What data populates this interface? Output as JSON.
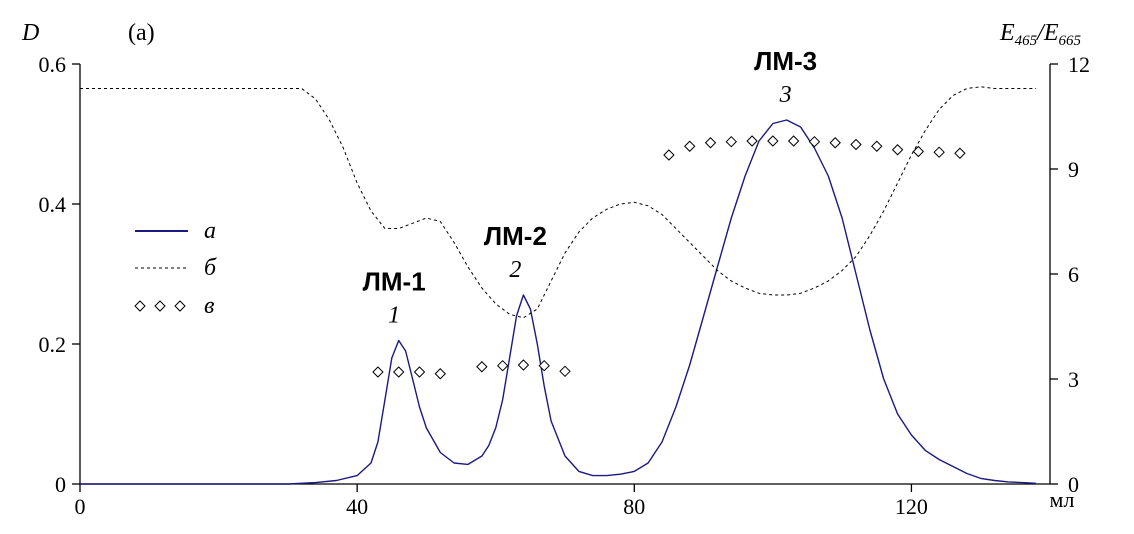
{
  "chart_data": {
    "type": "line",
    "panel_label": "(a)",
    "xlabel": "",
    "x_unit_label": "мл",
    "ylabel": "D",
    "y2label_text": "E465/E665",
    "xlim": [
      0,
      140
    ],
    "ylim": [
      0,
      0.6
    ],
    "y2lim": [
      0,
      12
    ],
    "x_ticks": [
      "0",
      "40",
      "80",
      "120"
    ],
    "y_ticks": [
      "0",
      "0.2",
      "0.4",
      "0.6"
    ],
    "y2_ticks": [
      "0",
      "3",
      "6",
      "9",
      "12"
    ],
    "grid": false,
    "legend_position": "left-middle",
    "series": [
      {
        "name": "а",
        "axis": "left",
        "style": "solid",
        "color": "#1a1a80",
        "x": [
          0,
          30,
          34,
          37,
          40,
          42,
          43,
          44,
          45,
          46,
          47,
          48,
          49,
          50,
          52,
          54,
          56,
          58,
          59,
          60,
          61,
          62,
          63,
          64,
          65,
          66,
          67,
          68,
          70,
          72,
          74,
          76,
          78,
          80,
          82,
          84,
          86,
          88,
          90,
          92,
          94,
          96,
          98,
          100,
          102,
          104,
          106,
          108,
          110,
          112,
          114,
          116,
          118,
          120,
          122,
          124,
          126,
          128,
          130,
          132,
          134,
          136,
          138
        ],
        "y": [
          0,
          0,
          0.002,
          0.005,
          0.012,
          0.03,
          0.06,
          0.12,
          0.18,
          0.205,
          0.19,
          0.15,
          0.11,
          0.08,
          0.045,
          0.03,
          0.028,
          0.04,
          0.055,
          0.08,
          0.12,
          0.18,
          0.24,
          0.27,
          0.25,
          0.2,
          0.14,
          0.09,
          0.04,
          0.018,
          0.012,
          0.012,
          0.014,
          0.018,
          0.03,
          0.06,
          0.11,
          0.17,
          0.24,
          0.31,
          0.38,
          0.44,
          0.49,
          0.515,
          0.52,
          0.51,
          0.48,
          0.44,
          0.38,
          0.3,
          0.22,
          0.15,
          0.1,
          0.07,
          0.048,
          0.035,
          0.025,
          0.015,
          0.008,
          0.005,
          0.003,
          0.002,
          0.001
        ]
      },
      {
        "name": "б",
        "axis": "right",
        "style": "dashed",
        "color": "#000000",
        "x": [
          0,
          32,
          34,
          36,
          38,
          40,
          42,
          44,
          46,
          48,
          50,
          52,
          54,
          56,
          58,
          60,
          62,
          64,
          66,
          68,
          70,
          72,
          74,
          76,
          78,
          80,
          82,
          84,
          86,
          88,
          90,
          92,
          94,
          96,
          98,
          100,
          102,
          104,
          106,
          108,
          110,
          112,
          114,
          116,
          118,
          120,
          122,
          124,
          126,
          128,
          130,
          132,
          134,
          138
        ],
        "y": [
          11.3,
          11.3,
          11.0,
          10.4,
          9.6,
          8.6,
          7.8,
          7.3,
          7.3,
          7.45,
          7.6,
          7.5,
          6.9,
          6.2,
          5.6,
          5.15,
          4.85,
          4.75,
          5.0,
          5.8,
          6.6,
          7.2,
          7.6,
          7.85,
          8.0,
          8.05,
          7.95,
          7.7,
          7.3,
          6.9,
          6.5,
          6.1,
          5.8,
          5.6,
          5.45,
          5.4,
          5.4,
          5.45,
          5.6,
          5.8,
          6.1,
          6.5,
          7.1,
          7.8,
          8.6,
          9.4,
          10.1,
          10.7,
          11.1,
          11.3,
          11.35,
          11.3,
          11.3,
          11.3
        ]
      },
      {
        "name": "в",
        "axis": "right",
        "style": "markers",
        "color": "#000000",
        "x": [
          43,
          46,
          49,
          52,
          58,
          61,
          64,
          67,
          70,
          85,
          88,
          91,
          94,
          97,
          100,
          103,
          106,
          109,
          112,
          115,
          118,
          121,
          124,
          127
        ],
        "y": [
          3.2,
          3.2,
          3.2,
          3.15,
          3.35,
          3.38,
          3.4,
          3.38,
          3.22,
          9.4,
          9.65,
          9.75,
          9.78,
          9.8,
          9.8,
          9.8,
          9.78,
          9.75,
          9.7,
          9.65,
          9.55,
          9.5,
          9.48,
          9.45
        ]
      }
    ],
    "annotations": [
      {
        "text": "1",
        "name": "ЛМ-1",
        "x": 46.5
      },
      {
        "text": "2",
        "name": "ЛМ-2",
        "x": 64
      },
      {
        "text": "3",
        "name": "ЛМ-3",
        "x": 103
      }
    ]
  }
}
